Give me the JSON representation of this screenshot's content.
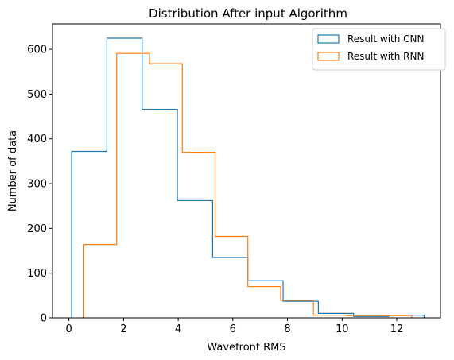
{
  "chart_data": {
    "type": "histogram",
    "title": "Distribution After input Algorithm",
    "xlabel": "Wavefront RMS",
    "ylabel": "Number of data",
    "xlim": [
      -0.6,
      13.6
    ],
    "ylim": [
      0,
      657
    ],
    "xticks": [
      0,
      2,
      4,
      6,
      8,
      10,
      12
    ],
    "yticks": [
      0,
      100,
      200,
      300,
      400,
      500,
      600
    ],
    "grid": false,
    "legend_position": "top-right",
    "series": [
      {
        "name": "Result with CNN",
        "color": "#1f77b4",
        "bin_edges": [
          0.1,
          1.39,
          2.68,
          3.97,
          5.26,
          6.55,
          7.84,
          9.13,
          10.42,
          11.71,
          13.0
        ],
        "counts": [
          372,
          625,
          466,
          262,
          135,
          83,
          37,
          10,
          3,
          6
        ]
      },
      {
        "name": "Result with RNN",
        "color": "#ff7f0e",
        "bin_edges": [
          0.55,
          1.75,
          2.95,
          4.15,
          5.35,
          6.55,
          7.75,
          8.95,
          10.15,
          11.35,
          12.55
        ],
        "counts": [
          164,
          591,
          568,
          370,
          182,
          70,
          39,
          6,
          5,
          5
        ]
      }
    ]
  }
}
